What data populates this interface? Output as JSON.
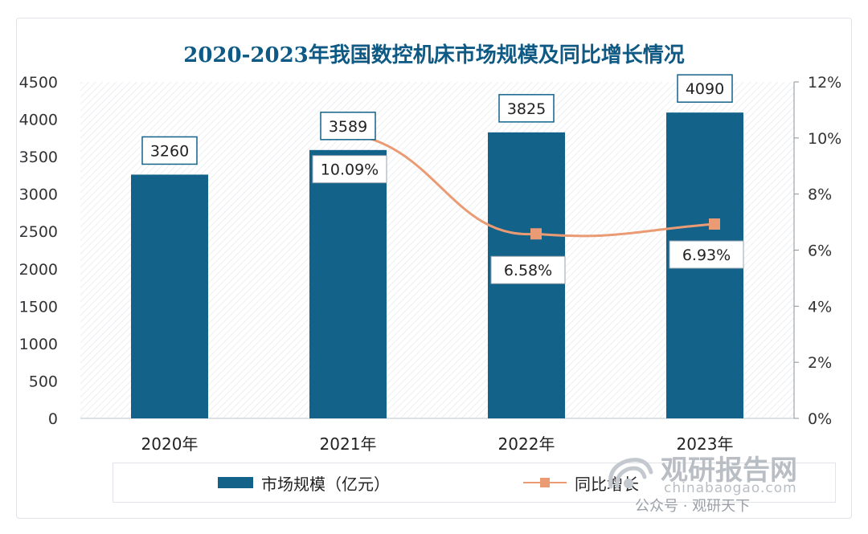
{
  "chart_data": {
    "type": "bar+line",
    "title": "2020-2023年我国数控机床市场规模及同比增长情况",
    "categories": [
      "2020年",
      "2021年",
      "2022年",
      "2023年"
    ],
    "bar_series": {
      "name": "市场规模（亿元）",
      "values": [
        3260,
        3589,
        3825,
        4090
      ],
      "labels": [
        "3260",
        "3589",
        "3825",
        "4090"
      ]
    },
    "line_series": {
      "name": "同比增长",
      "x_categories": [
        "2021年",
        "2022年",
        "2023年"
      ],
      "values": [
        10.09,
        6.58,
        6.93
      ],
      "labels": [
        "10.09%",
        "6.58%",
        "6.93%"
      ]
    },
    "y_left": {
      "min": 0,
      "max": 4500,
      "ticks": [
        "0",
        "500",
        "1000",
        "1500",
        "2000",
        "2500",
        "3000",
        "3500",
        "4000",
        "4500"
      ]
    },
    "y_right": {
      "min": 0,
      "max": 12,
      "ticks": [
        "0%",
        "2%",
        "4%",
        "6%",
        "8%",
        "10%",
        "12%"
      ]
    },
    "colors": {
      "bar": "#13628a",
      "line": "#ea9b74",
      "title": "#0f5a84"
    }
  },
  "legend": {
    "bar_label": "市场规模（亿元）",
    "line_label": "同比增长"
  },
  "watermark": {
    "brand": "观研报告网",
    "url": "chinabaogao.com",
    "account": "公众号 · 观研天下"
  }
}
